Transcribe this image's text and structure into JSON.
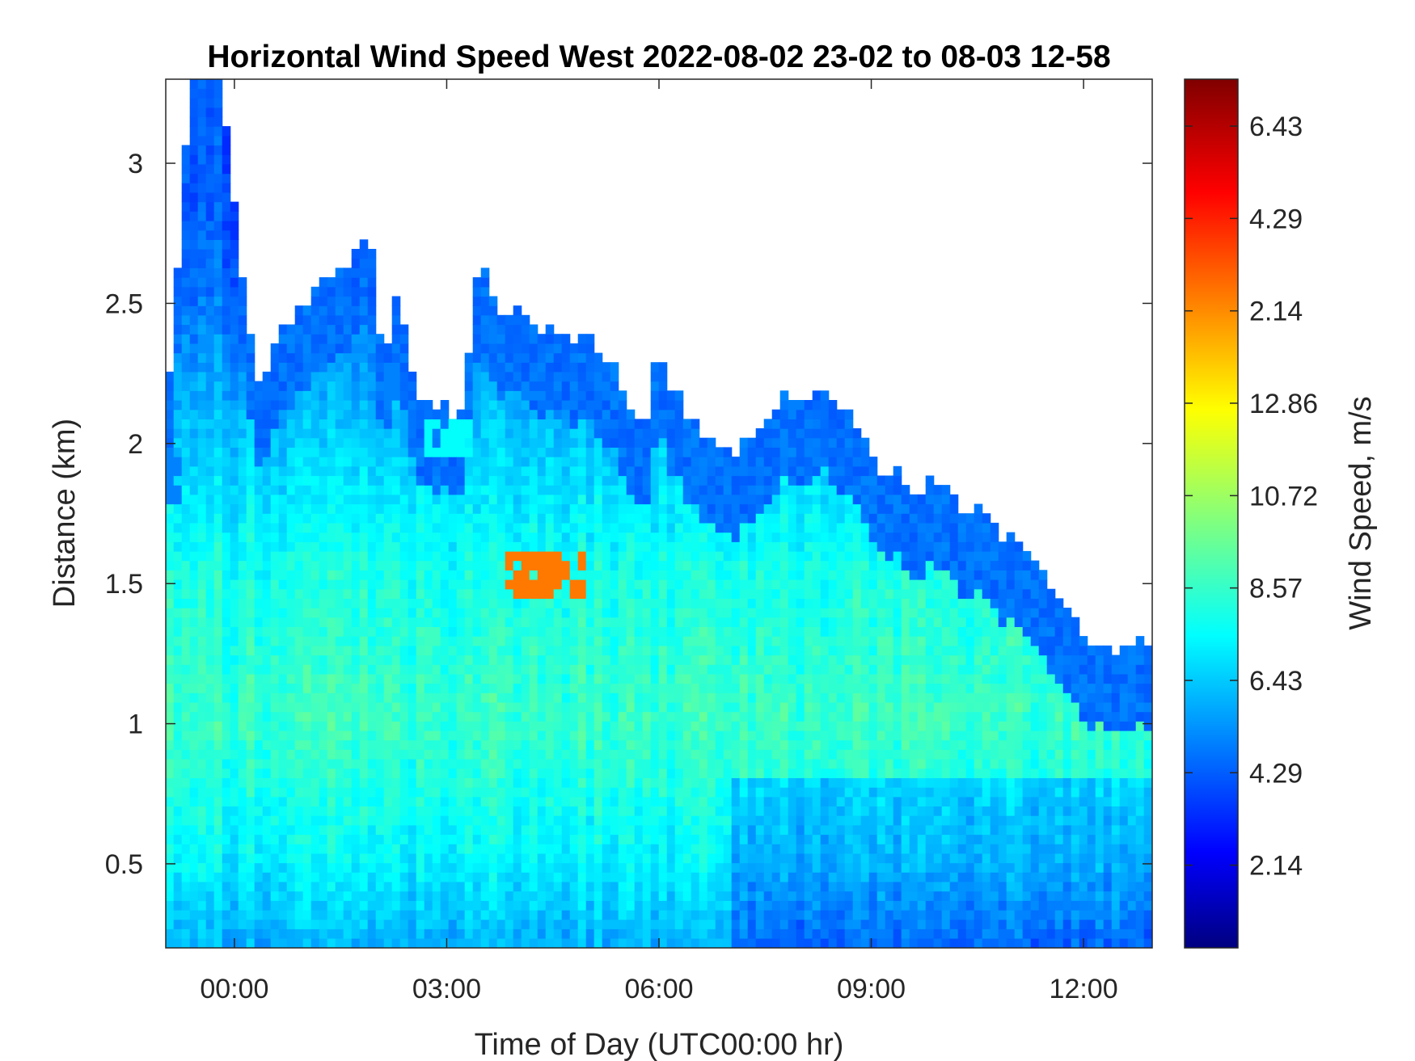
{
  "chart_data": {
    "type": "heatmap",
    "title": "Horizontal Wind Speed West 2022-08-02 23-02 to 08-03 12-58",
    "xlabel": "Time of Day (UTC00:00 hr)",
    "ylabel": "Distance (km)",
    "colorbar_label": "Wind Speed, m/s",
    "colormap": "jet",
    "x_range_hours": [
      -0.97,
      12.97
    ],
    "y_range_km": [
      0.2,
      3.3
    ],
    "x_ticks": [
      {
        "value": 0,
        "label": "00:00"
      },
      {
        "value": 3,
        "label": "03:00"
      },
      {
        "value": 6,
        "label": "06:00"
      },
      {
        "value": 9,
        "label": "09:00"
      },
      {
        "value": 12,
        "label": "12:00"
      }
    ],
    "y_ticks": [
      {
        "value": 0.5,
        "label": "0.5"
      },
      {
        "value": 1,
        "label": "1"
      },
      {
        "value": 1.5,
        "label": "1.5"
      },
      {
        "value": 2,
        "label": "2"
      },
      {
        "value": 2.5,
        "label": "2.5"
      },
      {
        "value": 3,
        "label": "3"
      }
    ],
    "colorbar_ticks": [
      {
        "frac": 0.0952,
        "label": "2.14"
      },
      {
        "frac": 0.2016,
        "label": "4.29"
      },
      {
        "frac": 0.3079,
        "label": "6.43"
      },
      {
        "frac": 0.4143,
        "label": "8.57"
      },
      {
        "frac": 0.5206,
        "label": "10.72"
      },
      {
        "frac": 0.627,
        "label": "12.86"
      },
      {
        "frac": 0.7333,
        "label": "2.14"
      },
      {
        "frac": 0.8397,
        "label": "4.29"
      },
      {
        "frac": 0.946,
        "label": "6.43"
      }
    ],
    "valid_data_top_km": {
      "x": [
        -0.9,
        -0.6,
        -0.2,
        0.3,
        0.6,
        1.0,
        1.5,
        1.9,
        2.1,
        2.3,
        2.6,
        2.9,
        3.2,
        3.5,
        3.7,
        4.0,
        4.5,
        5.0,
        5.4,
        5.8,
        6.0,
        6.3,
        6.8,
        7.3,
        7.7,
        8.1,
        8.6,
        9.0,
        9.5,
        10.0,
        10.5,
        11.0,
        11.5,
        12.0,
        12.5,
        12.95
      ],
      "y": [
        2.3,
        3.3,
        3.3,
        2.2,
        2.35,
        2.5,
        2.6,
        2.75,
        2.3,
        2.55,
        2.15,
        2.15,
        2.1,
        2.7,
        2.45,
        2.5,
        2.4,
        2.4,
        2.25,
        2.05,
        2.35,
        2.15,
        1.95,
        2.0,
        2.15,
        2.2,
        2.15,
        1.95,
        1.85,
        1.85,
        1.75,
        1.65,
        1.5,
        1.3,
        1.3,
        1.3
      ]
    },
    "wind_speed_profile": {
      "height_km": [
        0.2,
        0.5,
        1.0,
        1.5,
        2.0,
        2.5,
        3.0
      ],
      "value_m_s": [
        5.0,
        6.2,
        7.3,
        6.8,
        5.5,
        4.0,
        3.5
      ]
    },
    "notable_features": [
      {
        "x": [
          2.7,
          3.4
        ],
        "y": [
          1.95,
          2.1
        ],
        "value_m_s": 6.43
      },
      {
        "x": [
          2.1,
          2.35
        ],
        "y": [
          2.15,
          2.3
        ],
        "value_m_s": 4.29
      },
      {
        "x": [
          -0.95,
          -0.7
        ],
        "y": [
          1.8,
          2.0
        ],
        "value_m_s": 4.29
      },
      {
        "x": [
          3.8,
          5.0
        ],
        "y": [
          1.45,
          1.6
        ],
        "value_m_s": 12.86
      }
    ]
  }
}
